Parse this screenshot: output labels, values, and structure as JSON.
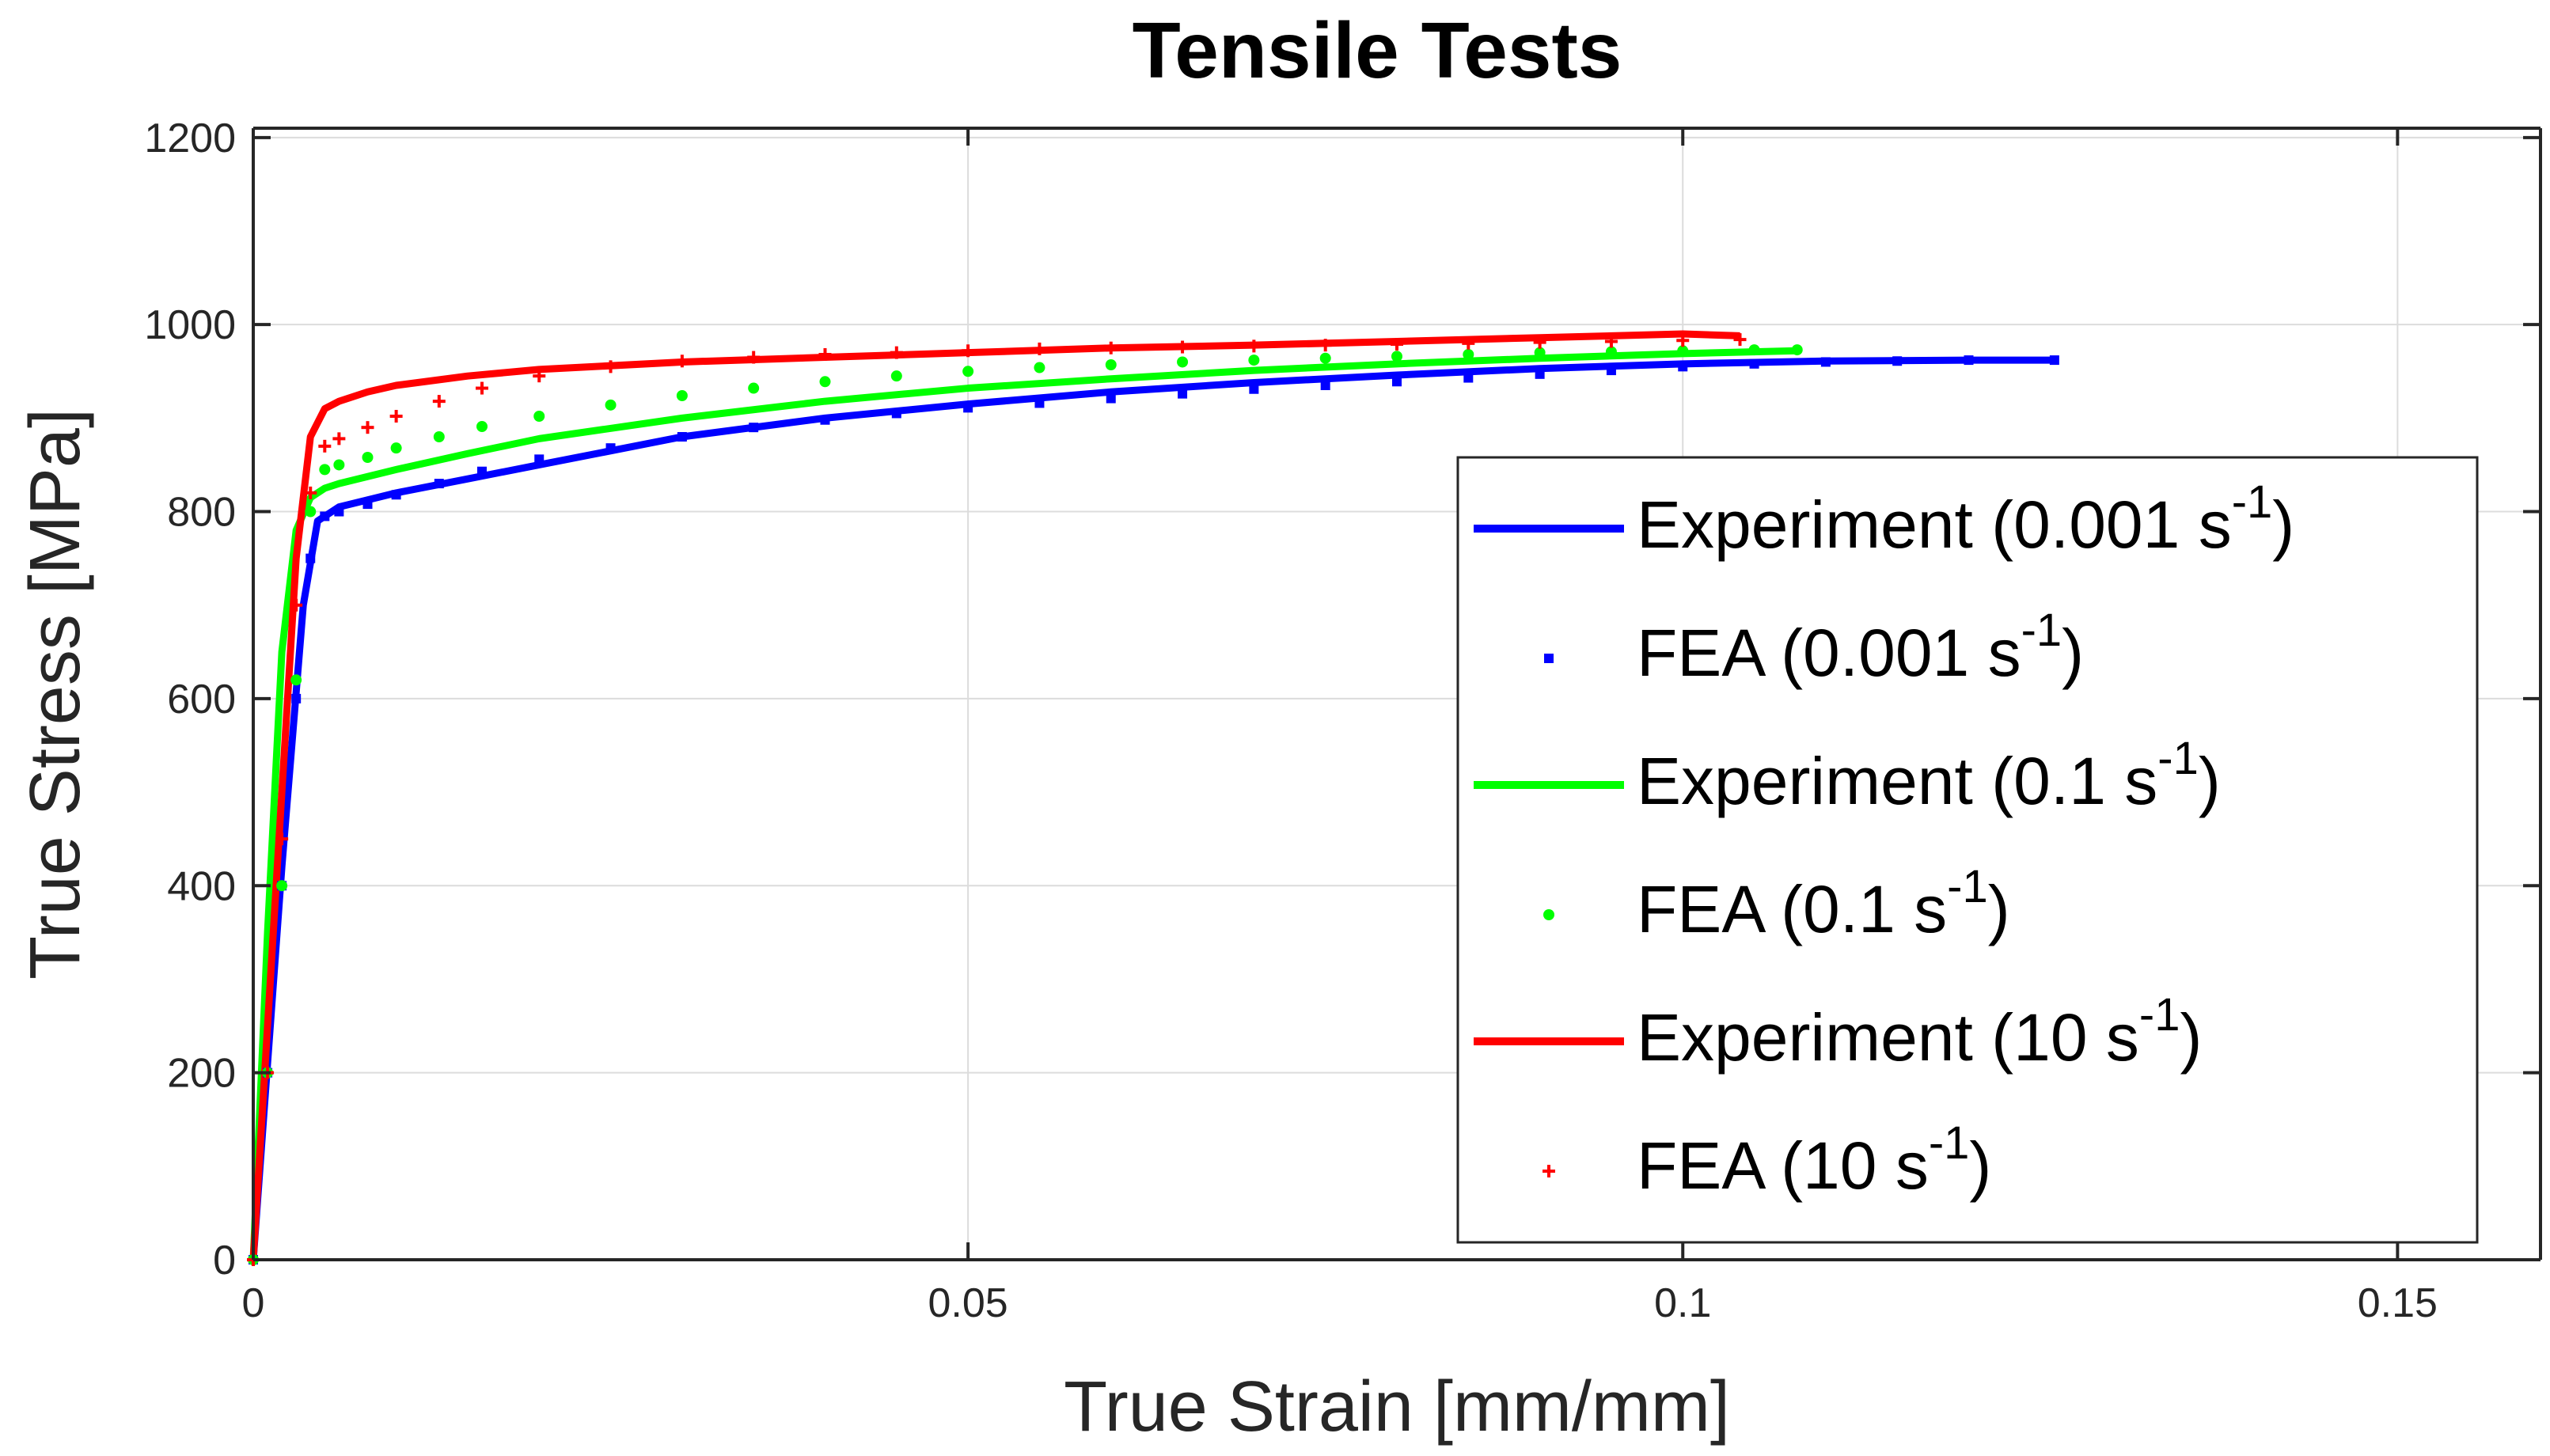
{
  "chart_data": {
    "type": "line",
    "title": "Tensile Tests",
    "xlabel": "True Strain [mm/mm]",
    "ylabel": "True Stress [MPa]",
    "xlim": [
      0,
      0.16
    ],
    "ylim": [
      0,
      1210
    ],
    "xticks": [
      0,
      0.05,
      0.1,
      0.15
    ],
    "xtick_labels": [
      "0",
      "0.05",
      "0.1",
      "0.15"
    ],
    "yticks": [
      0,
      200,
      400,
      600,
      800,
      1000,
      1200
    ],
    "ytick_labels": [
      "0",
      "200",
      "400",
      "600",
      "800",
      "1000",
      "1200"
    ],
    "grid": true,
    "legend_position": "lower-right",
    "series": [
      {
        "name": "Experiment (0.001 s-1)",
        "legend_main": "Experiment (0.001 s",
        "legend_sup": "-1",
        "legend_close": ")",
        "style": "line",
        "color": "#0000ff",
        "x": [
          0,
          0.002,
          0.0035,
          0.0045,
          0.006,
          0.01,
          0.015,
          0.02,
          0.03,
          0.04,
          0.05,
          0.06,
          0.07,
          0.08,
          0.09,
          0.1,
          0.11,
          0.12,
          0.126
        ],
        "y": [
          0,
          420,
          700,
          790,
          805,
          820,
          835,
          850,
          880,
          900,
          915,
          928,
          938,
          946,
          953,
          958,
          961,
          962,
          962
        ]
      },
      {
        "name": "FEA (0.001 s-1)",
        "legend_main": "FEA (0.001 s",
        "legend_sup": "-1",
        "legend_close": ")",
        "style": "marker-square",
        "color": "#0000ff",
        "x": [
          0,
          0.001,
          0.002,
          0.003,
          0.004,
          0.005,
          0.006,
          0.008,
          0.01,
          0.013,
          0.016,
          0.02,
          0.025,
          0.03,
          0.035,
          0.04,
          0.045,
          0.05,
          0.055,
          0.06,
          0.065,
          0.07,
          0.075,
          0.08,
          0.085,
          0.09,
          0.095,
          0.1,
          0.105,
          0.11,
          0.115,
          0.12,
          0.126
        ],
        "y": [
          0,
          200,
          400,
          600,
          750,
          795,
          800,
          808,
          818,
          830,
          843,
          856,
          868,
          880,
          890,
          898,
          905,
          911,
          916,
          921,
          926,
          931,
          935,
          939,
          943,
          947,
          951,
          955,
          958,
          960,
          961,
          962,
          962
        ]
      },
      {
        "name": "Experiment (0.1 s-1)",
        "legend_main": "Experiment (0.1 s",
        "legend_sup": "-1",
        "legend_close": ")",
        "style": "line",
        "color": "#00ff00",
        "x": [
          0,
          0.001,
          0.002,
          0.003,
          0.004,
          0.005,
          0.006,
          0.01,
          0.015,
          0.02,
          0.03,
          0.04,
          0.05,
          0.06,
          0.07,
          0.08,
          0.09,
          0.1,
          0.108
        ],
        "y": [
          0,
          350,
          650,
          780,
          815,
          825,
          830,
          845,
          862,
          878,
          900,
          918,
          932,
          942,
          951,
          958,
          964,
          969,
          972
        ]
      },
      {
        "name": "FEA (0.1 s-1)",
        "legend_main": "FEA (0.1 s",
        "legend_sup": "-1",
        "legend_close": ")",
        "style": "marker-circle",
        "color": "#00ff00",
        "x": [
          0,
          0.001,
          0.002,
          0.003,
          0.004,
          0.005,
          0.006,
          0.008,
          0.01,
          0.013,
          0.016,
          0.02,
          0.025,
          0.03,
          0.035,
          0.04,
          0.045,
          0.05,
          0.055,
          0.06,
          0.065,
          0.07,
          0.075,
          0.08,
          0.085,
          0.09,
          0.095,
          0.1,
          0.105,
          0.108
        ],
        "y": [
          0,
          200,
          400,
          620,
          800,
          845,
          850,
          858,
          868,
          880,
          891,
          902,
          914,
          924,
          932,
          939,
          945,
          950,
          954,
          957,
          960,
          962,
          964,
          966,
          968,
          970,
          971,
          972,
          973,
          973
        ]
      },
      {
        "name": "Experiment (10 s-1)",
        "legend_main": "Experiment (10 s",
        "legend_sup": "-1",
        "legend_close": ")",
        "style": "line",
        "color": "#ff0000",
        "x": [
          0,
          0.001,
          0.002,
          0.003,
          0.004,
          0.005,
          0.006,
          0.008,
          0.01,
          0.015,
          0.02,
          0.03,
          0.04,
          0.05,
          0.06,
          0.07,
          0.08,
          0.09,
          0.1,
          0.104
        ],
        "y": [
          0,
          250,
          500,
          750,
          880,
          910,
          918,
          928,
          935,
          945,
          952,
          960,
          965,
          970,
          975,
          978,
          982,
          986,
          990,
          988
        ]
      },
      {
        "name": "FEA (10 s-1)",
        "legend_main": "FEA (10 s",
        "legend_sup": "-1",
        "legend_close": ")",
        "style": "marker-plus",
        "color": "#ff0000",
        "x": [
          0,
          0.001,
          0.002,
          0.003,
          0.004,
          0.005,
          0.006,
          0.008,
          0.01,
          0.013,
          0.016,
          0.02,
          0.025,
          0.03,
          0.035,
          0.04,
          0.045,
          0.05,
          0.055,
          0.06,
          0.065,
          0.07,
          0.075,
          0.08,
          0.085,
          0.09,
          0.095,
          0.1,
          0.104
        ],
        "y": [
          0,
          200,
          450,
          700,
          820,
          870,
          878,
          890,
          902,
          918,
          932,
          945,
          955,
          961,
          965,
          968,
          970,
          972,
          974,
          975,
          976,
          977,
          978,
          979,
          980,
          981,
          982,
          983,
          984
        ]
      }
    ]
  }
}
